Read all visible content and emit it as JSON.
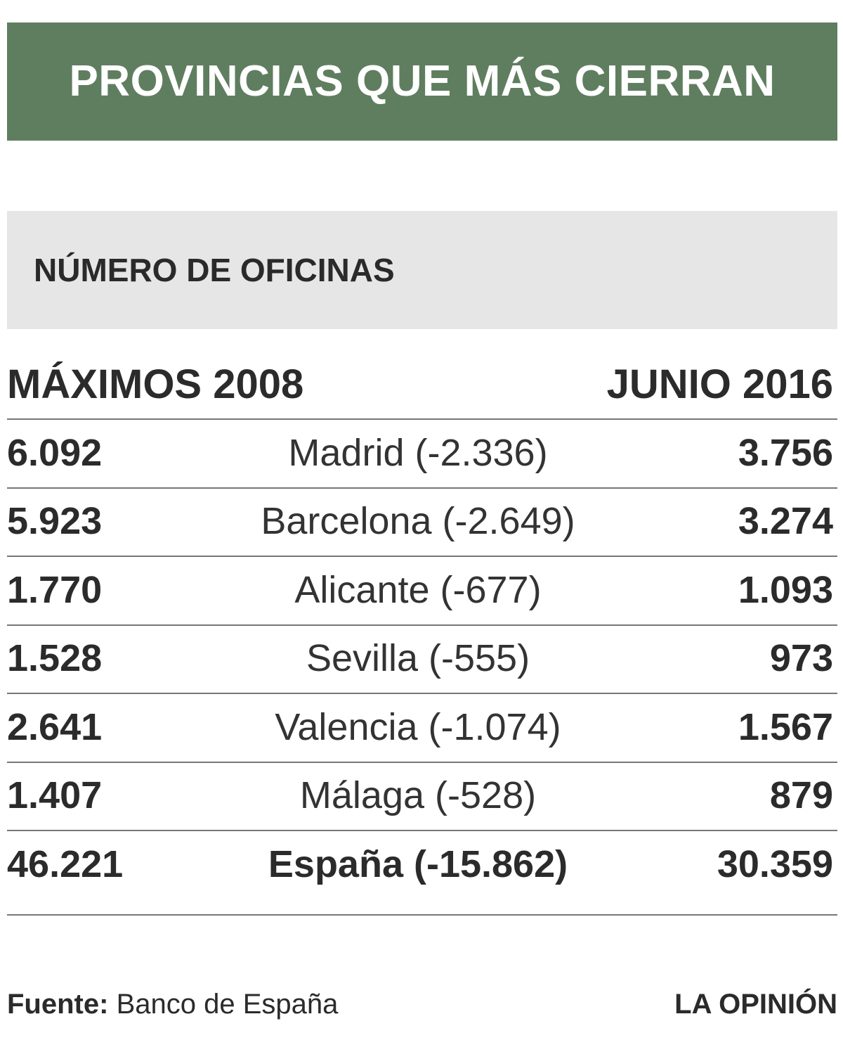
{
  "header": {
    "title": "PROVINCIAS QUE MÁS CIERRAN"
  },
  "table": {
    "subtitle": "NÚMERO DE OFICINAS",
    "columns": [
      "MÁXIMOS 2008",
      "JUNIO 2016"
    ],
    "rows": [
      [
        "6.092",
        "Madrid (-2.336)",
        "3.756"
      ],
      [
        "5.923",
        "Barcelona (-2.649)",
        "3.274"
      ],
      [
        "1.770",
        "Alicante (-677)",
        "1.093"
      ],
      [
        "1.528",
        "Sevilla (-555)",
        "973"
      ],
      [
        "2.641",
        "Valencia (-1.074)",
        "1.567"
      ],
      [
        "1.407",
        "Málaga (-528)",
        "879"
      ],
      [
        "46.221",
        "España (-15.862)",
        "30.359"
      ]
    ]
  },
  "footer": {
    "source_label": "Fuente:",
    "source": "Banco de España",
    "brand": "LA OPINIÓN"
  }
}
